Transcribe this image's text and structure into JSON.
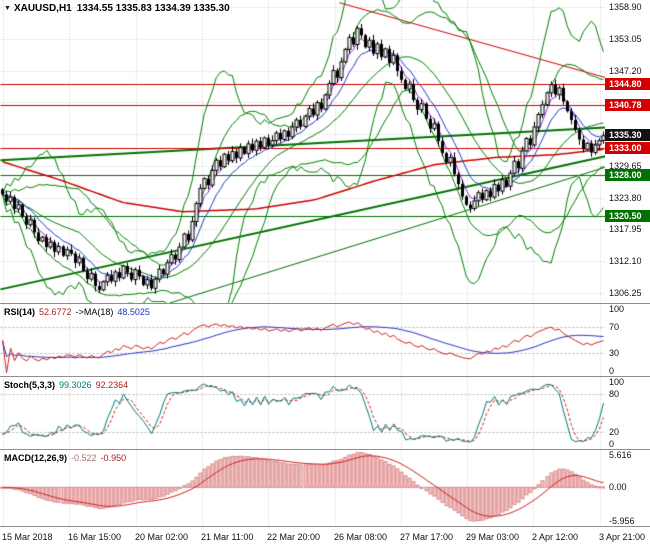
{
  "header": {
    "marker": "▼",
    "symbol_period": "XAUUSD,H1",
    "ohlc": "1334.55 1335.83 1334.39 1335.30"
  },
  "colors": {
    "background": "#ffffff",
    "grid": "#c9c9c9",
    "separator": "#8f8f8f",
    "candle": "#000000",
    "bollinger_green": "#008000",
    "ma_slow_red": "#cc0000",
    "ma_fast_purple": "#8a2be2",
    "ma_fast_blue": "#1e3ccc",
    "level_red": "#d20000",
    "level_green": "#007000",
    "badge_current": "#111111",
    "rsi_main": "#cc2222",
    "rsi_ma": "#2233bb",
    "stoch_main": "#007a7a",
    "stoch_signal": "#cc2222",
    "macd_hist_fill": "#f5c6c6",
    "macd_hist_stroke": "#d98a8a",
    "macd_signal": "#cc2222",
    "sub_level": "#b5b5b5"
  },
  "chart_data": [
    {
      "name": "price",
      "type": "candlestick",
      "title": "XAUUSD,H1",
      "symbol": "XAUUSD",
      "timeframe": "H1",
      "current_bar": {
        "open": 1334.55,
        "high": 1335.83,
        "low": 1334.39,
        "close": 1335.3
      },
      "ylim": [
        1304.4,
        1360.2
      ],
      "y_gridlines": [
        1358.9,
        1353.05,
        1347.2,
        1341.35,
        1335.5,
        1329.65,
        1323.8,
        1317.95,
        1312.1,
        1306.25
      ],
      "axis_labels": [
        "1358.90",
        "1353.05",
        "1347.20",
        "1329.65",
        "1323.80",
        "1317.95",
        "1312.10",
        "1306.25"
      ],
      "x_tick_labels": [
        "15 Mar 2018",
        "16 Mar 15:00",
        "20 Mar 02:00",
        "21 Mar 11:00",
        "22 Mar 20:00",
        "26 Mar 08:00",
        "27 Mar 17:00",
        "29 Mar 03:00",
        "2 Apr 12:00",
        "3 Apr 21:00"
      ],
      "price_badges": [
        {
          "label": "1344.80",
          "value": 1344.8,
          "type": "resistance",
          "color": "#d20000"
        },
        {
          "label": "1340.78",
          "value": 1340.78,
          "type": "resistance",
          "color": "#d20000"
        },
        {
          "label": "1335.30",
          "value": 1335.3,
          "type": "current-price",
          "color": "#111111"
        },
        {
          "label": "1333.00",
          "value": 1333.0,
          "type": "level",
          "color": "#d20000"
        },
        {
          "label": "1328.00",
          "value": 1328.0,
          "type": "support",
          "color": "#007000"
        },
        {
          "label": "1320.50",
          "value": 1320.5,
          "type": "support",
          "color": "#007000"
        }
      ],
      "horizontal_lines": [
        {
          "value": 1344.8,
          "color": "#d20000"
        },
        {
          "value": 1340.78,
          "color": "#d20000"
        },
        {
          "value": 1333.0,
          "color": "#d20000"
        },
        {
          "value": 1328.0,
          "color": "#007000"
        },
        {
          "value": 1320.5,
          "color": "#007000"
        }
      ],
      "trendlines": [
        {
          "color": "#d20000",
          "width": 1,
          "points": [
            [
              0.56,
              1359.8
            ],
            [
              1,
              1346.0
            ]
          ]
        },
        {
          "color": "#007000",
          "width": 2,
          "points": [
            [
              0,
              1307.0
            ],
            [
              1,
              1331.5
            ]
          ]
        },
        {
          "color": "#007000",
          "width": 1,
          "points": [
            [
              0.28,
              1304.5
            ],
            [
              1,
              1329.5
            ]
          ]
        },
        {
          "color": "#007000",
          "width": 2,
          "points": [
            [
              0,
              1330.8
            ],
            [
              1,
              1336.8
            ]
          ]
        }
      ],
      "ma_slow_path": [
        [
          0,
          1330.5
        ],
        [
          0.1,
          1327.0
        ],
        [
          0.2,
          1323.0
        ],
        [
          0.3,
          1321.3
        ],
        [
          0.42,
          1321.8
        ],
        [
          0.52,
          1323.5
        ],
        [
          0.62,
          1327.0
        ],
        [
          0.72,
          1330.0
        ],
        [
          0.82,
          1331.3
        ],
        [
          0.92,
          1331.8
        ],
        [
          1,
          1332.8
        ]
      ],
      "overlays": {
        "bollinger": {
          "period": 20,
          "deviation": 2
        },
        "envelope": {
          "period": 12,
          "deviation": 4
        },
        "ema_fast": 4,
        "ema_mid": 9
      },
      "close_series": [
        1324.5,
        1323.2,
        1324.0,
        1321.8,
        1322.6,
        1320.4,
        1318.9,
        1319.8,
        1317.5,
        1315.9,
        1316.6,
        1314.8,
        1315.7,
        1313.9,
        1314.9,
        1313.2,
        1314.3,
        1313.6,
        1311.9,
        1312.8,
        1310.4,
        1308.9,
        1309.9,
        1307.6,
        1306.9,
        1308.4,
        1309.6,
        1308.5,
        1310.2,
        1309.1,
        1311.3,
        1310.1,
        1308.8,
        1310.6,
        1309.4,
        1307.8,
        1308.8,
        1307.2,
        1308.9,
        1310.7,
        1309.8,
        1311.9,
        1313.4,
        1312.5,
        1314.8,
        1317.2,
        1316.1,
        1319.5,
        1322.8,
        1325.6,
        1327.4,
        1326.2,
        1328.9,
        1330.8,
        1329.6,
        1331.9,
        1330.7,
        1332.4,
        1331.2,
        1333.1,
        1332.0,
        1333.8,
        1332.6,
        1334.3,
        1333.1,
        1334.9,
        1333.6,
        1334.4,
        1335.8,
        1334.6,
        1336.2,
        1335.1,
        1336.9,
        1338.2,
        1337.0,
        1338.9,
        1340.3,
        1339.1,
        1341.4,
        1340.2,
        1342.8,
        1344.9,
        1347.3,
        1346.0,
        1348.9,
        1351.2,
        1353.4,
        1352.1,
        1355.1,
        1353.8,
        1351.6,
        1352.9,
        1350.4,
        1352.2,
        1349.8,
        1351.3,
        1348.7,
        1350.1,
        1347.2,
        1345.6,
        1343.9,
        1344.8,
        1341.9,
        1340.1,
        1341.2,
        1338.4,
        1336.6,
        1337.5,
        1334.3,
        1332.1,
        1330.4,
        1331.3,
        1328.2,
        1326.4,
        1324.1,
        1322.6,
        1321.9,
        1323.3,
        1324.8,
        1323.5,
        1325.2,
        1324.0,
        1326.3,
        1325.1,
        1327.2,
        1326.0,
        1328.4,
        1330.6,
        1329.3,
        1332.5,
        1334.8,
        1333.6,
        1336.9,
        1339.2,
        1341.0,
        1343.2,
        1344.7,
        1342.9,
        1344.1,
        1341.6,
        1339.8,
        1338.2,
        1336.4,
        1334.6,
        1332.8,
        1333.9,
        1332.2,
        1333.6,
        1334.4,
        1335.3
      ]
    },
    {
      "name": "rsi",
      "type": "line",
      "label": "RSI(14)",
      "value": "52.6772",
      "ma_label": "->MA(18)",
      "ma_value": "48.5025",
      "period": 14,
      "ma_period": 18,
      "levels": [
        70,
        30
      ],
      "axis_labels": [
        {
          "text": "100",
          "value": 100
        },
        {
          "text": "70",
          "value": 70
        },
        {
          "text": "30",
          "value": 30
        },
        {
          "text": "0",
          "value": 0
        }
      ],
      "range": [
        -6,
        106
      ]
    },
    {
      "name": "stochastic",
      "type": "line",
      "label": "Stoch(5,3,3)",
      "k_value": "99.3026",
      "d_value": "92.2364",
      "k_period": 5,
      "slowing": 3,
      "d_period": 3,
      "levels": [
        80,
        20
      ],
      "axis_labels": [
        {
          "text": "100",
          "value": 100
        },
        {
          "text": "80",
          "value": 80
        },
        {
          "text": "20",
          "value": 20
        },
        {
          "text": "0",
          "value": 0
        }
      ],
      "range": [
        -6,
        106
      ]
    },
    {
      "name": "macd",
      "type": "bar",
      "label": "MACD(12,26,9)",
      "main_value": "-0.522",
      "signal_value": "-0.950",
      "fast": 12,
      "slow": 26,
      "signal": 9,
      "axis_labels": [
        {
          "text": "5.616",
          "value": 5.616
        },
        {
          "text": "0.00",
          "value": 0
        },
        {
          "text": "-5.956",
          "value": -5.956
        }
      ],
      "range": [
        -6.6,
        6.2
      ]
    }
  ]
}
